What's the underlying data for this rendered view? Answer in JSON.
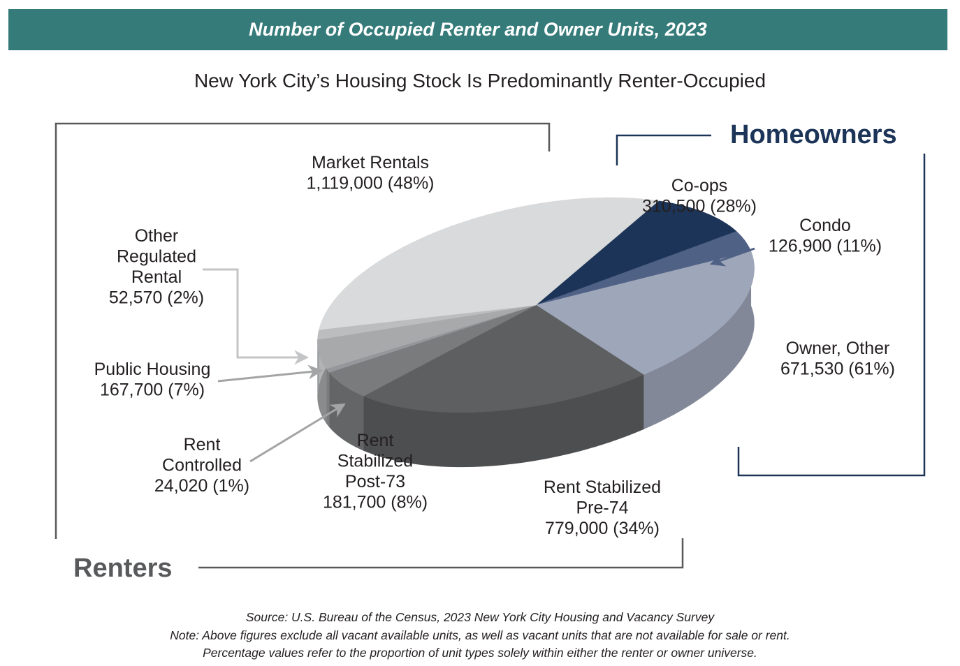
{
  "header": {
    "title": "Number of  Occupied Renter and Owner Units, 2023",
    "subtitle": "New York City’s Housing Stock Is Predominantly Renter-Occupied"
  },
  "groups": {
    "renters": "Renters",
    "homeowners": "Homeowners"
  },
  "chart_data": {
    "type": "pie",
    "title": "Number of  Occupied Renter and Owner Units, 2023",
    "subtitle": "New York City’s Housing Stock Is Predominantly Renter-Occupied",
    "slices": [
      {
        "key": "coops",
        "group": "Homeowners",
        "label": [
          "Co-ops"
        ],
        "units": 310500,
        "value_text": "310,500 (28%)",
        "group_percent": 28,
        "color": "#1c3457"
      },
      {
        "key": "condo",
        "group": "Homeowners",
        "label": [
          "Condo"
        ],
        "units": 126900,
        "value_text": "126,900 (11%)",
        "group_percent": 11,
        "color": "#4f6185"
      },
      {
        "key": "owner_other",
        "group": "Homeowners",
        "label": [
          "Owner, Other"
        ],
        "units": 671530,
        "value_text": "671,530 (61%)",
        "group_percent": 61,
        "color": "#9ea6b9"
      },
      {
        "key": "rent_stab_pre74",
        "group": "Renters",
        "label": [
          "Rent Stabilized",
          "Pre-74"
        ],
        "units": 779000,
        "value_text": "779,000 (34%)",
        "group_percent": 34,
        "color": "#5e5f61"
      },
      {
        "key": "rent_stab_post73",
        "group": "Renters",
        "label": [
          "Rent",
          "Stabilized",
          "Post-73"
        ],
        "units": 181700,
        "value_text": "181,700 (8%)",
        "group_percent": 8,
        "color": "#7a7b7d"
      },
      {
        "key": "rent_controlled",
        "group": "Renters",
        "label": [
          "Rent",
          "Controlled"
        ],
        "units": 24020,
        "value_text": "24,020 (1%)",
        "group_percent": 1,
        "color": "#96979a"
      },
      {
        "key": "public_housing",
        "group": "Renters",
        "label": [
          "Public Housing"
        ],
        "units": 167700,
        "value_text": "167,700 (7%)",
        "group_percent": 7,
        "color": "#a8a9ab"
      },
      {
        "key": "other_regulated",
        "group": "Renters",
        "label": [
          "Other",
          "Regulated",
          "Rental"
        ],
        "units": 52570,
        "value_text": "52,570 (2%)",
        "group_percent": 2,
        "color": "#bcbdbf"
      },
      {
        "key": "market",
        "group": "Renters",
        "label": [
          "Market Rentals"
        ],
        "units": 1119000,
        "value_text": "1,119,000 (48%)",
        "group_percent": 48,
        "color": "#d9dadb"
      }
    ]
  },
  "footer": {
    "source": "Source: U.S. Bureau of the Census, 2023 New York City Housing and Vacancy Survey",
    "note1": "Note: Above figures exclude all vacant available units, as well as vacant units that are not available for sale or rent.",
    "note2": "Percentage values refer to the proportion of unit types solely within either the renter or owner universe."
  }
}
